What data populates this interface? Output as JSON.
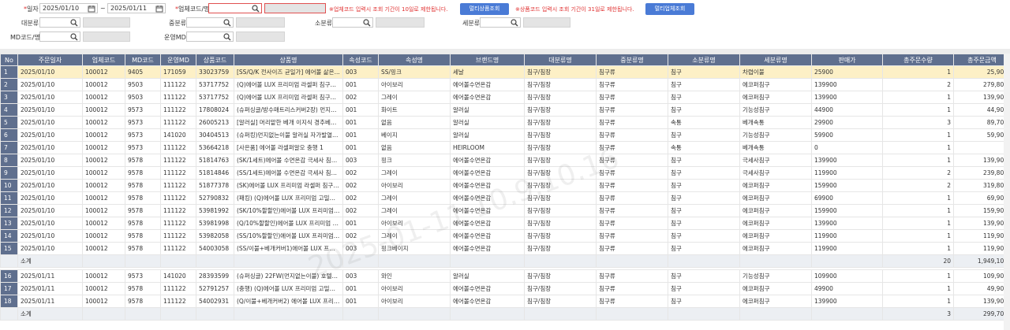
{
  "filters": {
    "date_label": "일자",
    "date_from": "2025/01/10",
    "date_to": "2025/01/11",
    "date_sep": "~",
    "vendor_label": "업체코드/명",
    "vendor_code": "",
    "vendor_name": "",
    "vendor_note": "※업체코드 입력시 조회 기간이 10일로 제한됩니다.",
    "multi_product_btn": "멀티상품조회",
    "product_note": "※상품코드 입력시 조회 기간이 31일로 제한됩니다.",
    "multi_vendor_btn": "멀티업체조회",
    "major_label": "대분류",
    "mid_label": "중분류",
    "minor_label": "소분류",
    "sub_label": "세분류",
    "md_label": "MD코드/명",
    "op_label": "운영MD"
  },
  "table": {
    "headers": [
      "No",
      "주문일자",
      "업체코드",
      "MD코드",
      "운영MD",
      "상품코드",
      "상품명",
      "속성코드",
      "속성명",
      "브랜드명",
      "대분류명",
      "중분류명",
      "소분류명",
      "세분류명",
      "판매가",
      "총주문수량",
      "총주문금액"
    ],
    "rows": [
      {
        "no": "1",
        "date": "2025/01/10",
        "vendor": "100012",
        "md": "9405",
        "opmd": "171059",
        "code": "33023759",
        "name": "[SS/Q/K 전사이즈 균일가] 에어볼 삶은...",
        "acode": "003",
        "aname": "SS/핑크",
        "brand": "세날",
        "c1": "침구/침장",
        "c2": "침구류",
        "c3": "침구",
        "c4": "차렵이불",
        "price": "25900",
        "qty": "1",
        "amt": "25,900",
        "sel": true
      },
      {
        "no": "2",
        "date": "2025/01/10",
        "vendor": "100012",
        "md": "9503",
        "opmd": "111122",
        "code": "53717752",
        "name": "(Q)에어볼 LUX 프리미엄 라셀퍼 침구세...",
        "acode": "001",
        "aname": "아이보리",
        "brand": "에어볼수면온감",
        "c1": "침구/침장",
        "c2": "침구류",
        "c3": "침구",
        "c4": "에코퍼침구",
        "price": "139900",
        "qty": "2",
        "amt": "279,800"
      },
      {
        "no": "3",
        "date": "2025/01/10",
        "vendor": "100012",
        "md": "9503",
        "opmd": "111122",
        "code": "53717752",
        "name": "(Q)에어볼 LUX 프리미엄 라셀퍼 침구세...",
        "acode": "002",
        "aname": "그레이",
        "brand": "에어볼수면온감",
        "c1": "침구/침장",
        "c2": "침구류",
        "c3": "침구",
        "c4": "에코퍼침구",
        "price": "139900",
        "qty": "1",
        "amt": "139,900"
      },
      {
        "no": "4",
        "date": "2025/01/10",
        "vendor": "100012",
        "md": "9573",
        "opmd": "111122",
        "code": "17808024",
        "name": "(슈퍼싱글/방수매트리스커버2장) 먼지없...",
        "acode": "001",
        "aname": "화이트",
        "brand": "알러실",
        "c1": "침구/침장",
        "c2": "침구류",
        "c3": "침구",
        "c4": "기능성침구",
        "price": "44900",
        "qty": "1",
        "amt": "44,900"
      },
      {
        "no": "5",
        "date": "2025/01/10",
        "vendor": "100012",
        "md": "9573",
        "opmd": "111122",
        "code": "26005213",
        "name": "[알러실] 머리맡한 베개 이지식 경추베개 ...",
        "acode": "001",
        "aname": "없음",
        "brand": "알러실",
        "c1": "침구/침장",
        "c2": "침구류",
        "c3": "속통",
        "c4": "베개속통",
        "price": "29900",
        "qty": "3",
        "amt": "89,700"
      },
      {
        "no": "6",
        "date": "2025/01/10",
        "vendor": "100012",
        "md": "9573",
        "opmd": "141020",
        "code": "30404513",
        "name": "(슈퍼킹)먼지없는이불 알러실 자가발열&...",
        "acode": "001",
        "aname": "베이지",
        "brand": "알러실",
        "c1": "침구/침장",
        "c2": "침구류",
        "c3": "침구",
        "c4": "기능성침구",
        "price": "59900",
        "qty": "1",
        "amt": "59,900"
      },
      {
        "no": "7",
        "date": "2025/01/10",
        "vendor": "100012",
        "md": "9573",
        "opmd": "111122",
        "code": "53664218",
        "name": "[사은품] 에어볼 라셀퍼알오 충행 1",
        "acode": "001",
        "aname": "없음",
        "brand": "HEIRLOOM",
        "c1": "침구/침장",
        "c2": "침구류",
        "c3": "속통",
        "c4": "베개속통",
        "price": "0",
        "qty": "1",
        "amt": "0"
      },
      {
        "no": "8",
        "date": "2025/01/10",
        "vendor": "100012",
        "md": "9578",
        "opmd": "111122",
        "code": "51814763",
        "name": "(SK/1세트)에어볼 수면온감 극세사 침구...",
        "acode": "003",
        "aname": "핑크",
        "brand": "에어볼수면온감",
        "c1": "침구/침장",
        "c2": "침구류",
        "c3": "침구",
        "c4": "극세사침구",
        "price": "139900",
        "qty": "1",
        "amt": "139,900"
      },
      {
        "no": "9",
        "date": "2025/01/10",
        "vendor": "100012",
        "md": "9578",
        "opmd": "111122",
        "code": "51814846",
        "name": "(SS/1세트)에어볼 수면온감 극세사 침구...",
        "acode": "002",
        "aname": "그레이",
        "brand": "에어볼수면온감",
        "c1": "침구/침장",
        "c2": "침구류",
        "c3": "침구",
        "c4": "극세사침구",
        "price": "119900",
        "qty": "2",
        "amt": "239,800"
      },
      {
        "no": "10",
        "date": "2025/01/10",
        "vendor": "100012",
        "md": "9578",
        "opmd": "111122",
        "code": "51877378",
        "name": "(SK)에어볼 LUX 프리미엄 라셀퍼 침구세...",
        "acode": "002",
        "aname": "아이보리",
        "brand": "에어볼수면온감",
        "c1": "침구/침장",
        "c2": "침구류",
        "c3": "침구",
        "c4": "에코퍼침구",
        "price": "159900",
        "qty": "2",
        "amt": "319,800"
      },
      {
        "no": "11",
        "date": "2025/01/10",
        "vendor": "100012",
        "md": "9578",
        "opmd": "111122",
        "code": "52790832",
        "name": "(패킹) (Q)에어볼 LUX 프리미엄 고밀도 라셀퍼 알오 ...",
        "acode": "002",
        "aname": "그레이",
        "brand": "에어볼수면온감",
        "c1": "침구/침장",
        "c2": "침구류",
        "c3": "침구",
        "c4": "에코퍼침구",
        "price": "69900",
        "qty": "1",
        "amt": "69,900"
      },
      {
        "no": "12",
        "date": "2025/01/10",
        "vendor": "100012",
        "md": "9578",
        "opmd": "111122",
        "code": "53981992",
        "name": "(SK/10%할할인)에어볼 LUX 프리미엄 라...",
        "acode": "002",
        "aname": "그레이",
        "brand": "에어볼수면온감",
        "c1": "침구/침장",
        "c2": "침구류",
        "c3": "침구",
        "c4": "에코퍼침구",
        "price": "159900",
        "qty": "1",
        "amt": "159,900"
      },
      {
        "no": "13",
        "date": "2025/01/10",
        "vendor": "100012",
        "md": "9578",
        "opmd": "111122",
        "code": "53981998",
        "name": "(Q/10%할할인)에어볼 LUX 프리미엄 라...",
        "acode": "001",
        "aname": "아이보리",
        "brand": "에어볼수면온감",
        "c1": "침구/침장",
        "c2": "침구류",
        "c3": "침구",
        "c4": "에코퍼침구",
        "price": "139900",
        "qty": "1",
        "amt": "139,900"
      },
      {
        "no": "14",
        "date": "2025/01/10",
        "vendor": "100012",
        "md": "9578",
        "opmd": "111122",
        "code": "53982058",
        "name": "(SS/10%할할인)에어볼 LUX 프리미엄 라...",
        "acode": "002",
        "aname": "그레이",
        "brand": "에어볼수면온감",
        "c1": "침구/침장",
        "c2": "침구류",
        "c3": "침구",
        "c4": "에코퍼침구",
        "price": "119900",
        "qty": "1",
        "amt": "119,900"
      },
      {
        "no": "15",
        "date": "2025/01/10",
        "vendor": "100012",
        "md": "9578",
        "opmd": "111122",
        "code": "54003058",
        "name": "(SS/이불+베개커버1)에어볼 LUX 프리미...",
        "acode": "003",
        "aname": "핑크베이지",
        "brand": "에어볼수면온감",
        "c1": "침구/침장",
        "c2": "침구류",
        "c3": "침구",
        "c4": "에코퍼침구",
        "price": "119900",
        "qty": "1",
        "amt": "119,900"
      }
    ],
    "subtotal1": {
      "label": "소계",
      "qty": "20",
      "amt": "1,949,100"
    },
    "rows2": [
      {
        "no": "16",
        "date": "2025/01/11",
        "vendor": "100012",
        "md": "9573",
        "opmd": "141020",
        "code": "28393599",
        "name": "(슈퍼싱글) 22FW(먼지없는이불) 호텔식 ...",
        "acode": "003",
        "aname": "와인",
        "brand": "알러실",
        "c1": "침구/침장",
        "c2": "침구류",
        "c3": "침구",
        "c4": "기능성침구",
        "price": "109900",
        "qty": "1",
        "amt": "109,900"
      },
      {
        "no": "17",
        "date": "2025/01/11",
        "vendor": "100012",
        "md": "9578",
        "opmd": "111122",
        "code": "52791257",
        "name": "(충행) (Q)에어볼 LUX 프리미엄 고밀도 라셀퍼 무릎...",
        "acode": "001",
        "aname": "아이보리",
        "brand": "에어볼수면온감",
        "c1": "침구/침장",
        "c2": "침구류",
        "c3": "침구",
        "c4": "에코퍼침구",
        "price": "49900",
        "qty": "1",
        "amt": "49,900"
      },
      {
        "no": "18",
        "date": "2025/01/11",
        "vendor": "100012",
        "md": "9578",
        "opmd": "111122",
        "code": "54002931",
        "name": "(Q/이불+베개커버2) 에어볼 LUX 프리미...",
        "acode": "001",
        "aname": "아이보리",
        "brand": "에어볼수면온감",
        "c1": "침구/침장",
        "c2": "침구류",
        "c3": "침구",
        "c4": "에코퍼침구",
        "price": "139900",
        "qty": "1",
        "amt": "139,900"
      }
    ],
    "subtotal2": {
      "label": "소계",
      "qty": "3",
      "amt": "299,700"
    }
  },
  "watermark": "2025-01-11 10.9.10.16"
}
